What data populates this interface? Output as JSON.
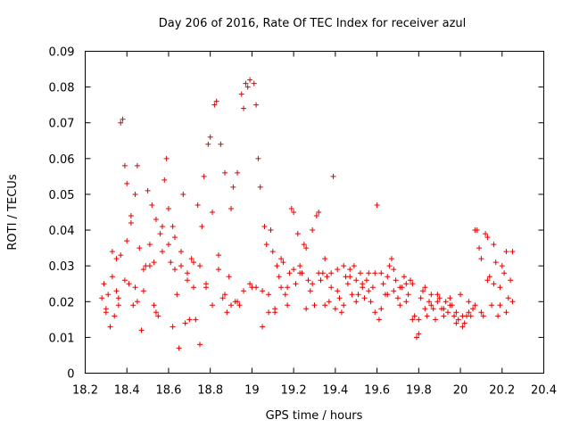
{
  "chart_data": {
    "type": "scatter",
    "title": "Day 206 of 2016, Rate Of TEC Index for receiver azul",
    "xlabel": "GPS time / hours",
    "ylabel": "ROTI / TECUs",
    "xlim": [
      18.2,
      20.4
    ],
    "ylim": [
      0,
      0.09
    ],
    "xticks": [
      18.2,
      18.4,
      18.6,
      18.8,
      19,
      19.2,
      19.4,
      19.6,
      19.8,
      20,
      20.2,
      20.4
    ],
    "xtick_labels": [
      "18.2",
      "18.4",
      "18.6",
      "18.8",
      "19",
      "19.2",
      "19.4",
      "19.6",
      "19.8",
      "20",
      "20.2",
      "20.4"
    ],
    "yticks": [
      0,
      0.01,
      0.02,
      0.03,
      0.04,
      0.05,
      0.06,
      0.07,
      0.08,
      0.09
    ],
    "ytick_labels": [
      "0",
      "0.01",
      "0.02",
      "0.03",
      "0.04",
      "0.05",
      "0.06",
      "0.07",
      "0.08",
      "0.09"
    ],
    "marker": "+",
    "color": "#e00000",
    "grid": false,
    "series": [
      {
        "name": "ROTI",
        "points": [
          [
            18.28,
            0.021
          ],
          [
            18.29,
            0.025
          ],
          [
            18.3,
            0.018
          ],
          [
            18.31,
            0.022
          ],
          [
            18.32,
            0.013
          ],
          [
            18.33,
            0.034
          ],
          [
            18.34,
            0.016
          ],
          [
            18.35,
            0.032
          ],
          [
            18.36,
            0.021
          ],
          [
            18.37,
            0.033
          ],
          [
            18.37,
            0.07
          ],
          [
            18.38,
            0.071
          ],
          [
            18.39,
            0.058
          ],
          [
            18.4,
            0.053
          ],
          [
            18.4,
            0.037
          ],
          [
            18.41,
            0.025
          ],
          [
            18.42,
            0.044
          ],
          [
            18.43,
            0.019
          ],
          [
            18.44,
            0.05
          ],
          [
            18.45,
            0.058
          ],
          [
            18.46,
            0.035
          ],
          [
            18.47,
            0.012
          ],
          [
            18.48,
            0.023
          ],
          [
            18.49,
            0.03
          ],
          [
            18.5,
            0.051
          ],
          [
            18.51,
            0.036
          ],
          [
            18.52,
            0.047
          ],
          [
            18.53,
            0.019
          ],
          [
            18.54,
            0.043
          ],
          [
            18.55,
            0.016
          ],
          [
            18.56,
            0.039
          ],
          [
            18.57,
            0.041
          ],
          [
            18.58,
            0.054
          ],
          [
            18.59,
            0.06
          ],
          [
            18.6,
            0.046
          ],
          [
            18.61,
            0.031
          ],
          [
            18.62,
            0.013
          ],
          [
            18.63,
            0.038
          ],
          [
            18.64,
            0.022
          ],
          [
            18.65,
            0.007
          ],
          [
            18.66,
            0.034
          ],
          [
            18.67,
            0.05
          ],
          [
            18.68,
            0.014
          ],
          [
            18.69,
            0.028
          ],
          [
            18.7,
            0.015
          ],
          [
            18.71,
            0.032
          ],
          [
            18.72,
            0.024
          ],
          [
            18.73,
            0.015
          ],
          [
            18.74,
            0.047
          ],
          [
            18.75,
            0.008
          ],
          [
            18.76,
            0.041
          ],
          [
            18.77,
            0.055
          ],
          [
            18.78,
            0.024
          ],
          [
            18.79,
            0.064
          ],
          [
            18.8,
            0.066
          ],
          [
            18.81,
            0.019
          ],
          [
            18.82,
            0.075
          ],
          [
            18.83,
            0.076
          ],
          [
            18.84,
            0.029
          ],
          [
            18.85,
            0.064
          ],
          [
            18.86,
            0.021
          ],
          [
            18.87,
            0.056
          ],
          [
            18.88,
            0.017
          ],
          [
            18.89,
            0.027
          ],
          [
            18.9,
            0.046
          ],
          [
            18.91,
            0.052
          ],
          [
            18.92,
            0.02
          ],
          [
            18.93,
            0.056
          ],
          [
            18.94,
            0.019
          ],
          [
            18.95,
            0.078
          ],
          [
            18.96,
            0.074
          ],
          [
            18.97,
            0.081
          ],
          [
            18.98,
            0.08
          ],
          [
            18.99,
            0.082
          ],
          [
            19.0,
            0.024
          ],
          [
            19.01,
            0.081
          ],
          [
            19.02,
            0.075
          ],
          [
            19.03,
            0.06
          ],
          [
            19.04,
            0.052
          ],
          [
            19.05,
            0.013
          ],
          [
            19.06,
            0.041
          ],
          [
            19.07,
            0.036
          ],
          [
            19.08,
            0.022
          ],
          [
            19.09,
            0.04
          ],
          [
            19.1,
            0.034
          ],
          [
            19.11,
            0.018
          ],
          [
            19.12,
            0.03
          ],
          [
            19.13,
            0.027
          ],
          [
            19.14,
            0.024
          ],
          [
            19.15,
            0.031
          ],
          [
            19.16,
            0.022
          ],
          [
            19.17,
            0.019
          ],
          [
            19.18,
            0.028
          ],
          [
            19.19,
            0.046
          ],
          [
            19.2,
            0.045
          ],
          [
            19.21,
            0.025
          ],
          [
            19.22,
            0.039
          ],
          [
            19.23,
            0.03
          ],
          [
            19.24,
            0.028
          ],
          [
            19.25,
            0.036
          ],
          [
            19.26,
            0.035
          ],
          [
            19.27,
            0.026
          ],
          [
            19.28,
            0.023
          ],
          [
            19.29,
            0.04
          ],
          [
            19.3,
            0.019
          ],
          [
            19.31,
            0.044
          ],
          [
            19.32,
            0.045
          ],
          [
            19.33,
            0.026
          ],
          [
            19.34,
            0.028
          ],
          [
            19.35,
            0.032
          ],
          [
            19.36,
            0.027
          ],
          [
            19.37,
            0.02
          ],
          [
            19.38,
            0.024
          ],
          [
            19.39,
            0.055
          ],
          [
            19.4,
            0.018
          ],
          [
            19.41,
            0.029
          ],
          [
            19.42,
            0.021
          ],
          [
            19.43,
            0.017
          ],
          [
            19.44,
            0.03
          ],
          [
            19.45,
            0.027
          ],
          [
            19.46,
            0.025
          ],
          [
            19.47,
            0.029
          ],
          [
            19.48,
            0.022
          ],
          [
            19.49,
            0.03
          ],
          [
            19.5,
            0.026
          ],
          [
            19.51,
            0.022
          ],
          [
            19.52,
            0.028
          ],
          [
            19.53,
            0.024
          ],
          [
            19.54,
            0.021
          ],
          [
            19.55,
            0.026
          ],
          [
            19.56,
            0.028
          ],
          [
            19.57,
            0.02
          ],
          [
            19.58,
            0.024
          ],
          [
            19.59,
            0.017
          ],
          [
            19.6,
            0.047
          ],
          [
            19.61,
            0.015
          ],
          [
            19.62,
            0.028
          ],
          [
            19.63,
            0.025
          ],
          [
            19.64,
            0.022
          ],
          [
            19.65,
            0.027
          ],
          [
            19.66,
            0.03
          ],
          [
            19.67,
            0.032
          ],
          [
            19.68,
            0.023
          ],
          [
            19.69,
            0.026
          ],
          [
            19.7,
            0.021
          ],
          [
            19.71,
            0.019
          ],
          [
            19.72,
            0.024
          ],
          [
            19.73,
            0.027
          ],
          [
            19.74,
            0.025
          ],
          [
            19.75,
            0.022
          ],
          [
            19.76,
            0.026
          ],
          [
            19.77,
            0.015
          ],
          [
            19.78,
            0.016
          ],
          [
            19.79,
            0.01
          ],
          [
            19.8,
            0.011
          ],
          [
            19.81,
            0.021
          ],
          [
            19.82,
            0.023
          ],
          [
            19.83,
            0.018
          ],
          [
            19.84,
            0.016
          ],
          [
            19.85,
            0.02
          ],
          [
            19.86,
            0.022
          ],
          [
            19.87,
            0.018
          ],
          [
            19.88,
            0.015
          ],
          [
            19.89,
            0.02
          ],
          [
            19.9,
            0.021
          ],
          [
            19.91,
            0.018
          ],
          [
            19.92,
            0.016
          ],
          [
            19.93,
            0.02
          ],
          [
            19.94,
            0.017
          ],
          [
            19.95,
            0.021
          ],
          [
            19.96,
            0.019
          ],
          [
            19.97,
            0.016
          ],
          [
            19.98,
            0.014
          ],
          [
            19.99,
            0.015
          ],
          [
            20.0,
            0.022
          ],
          [
            20.01,
            0.013
          ],
          [
            20.02,
            0.014
          ],
          [
            20.03,
            0.016
          ],
          [
            20.04,
            0.017
          ],
          [
            20.05,
            0.016
          ],
          [
            20.06,
            0.018
          ],
          [
            20.07,
            0.04
          ],
          [
            20.08,
            0.04
          ],
          [
            20.09,
            0.035
          ],
          [
            20.1,
            0.032
          ],
          [
            20.11,
            0.016
          ],
          [
            20.12,
            0.039
          ],
          [
            20.13,
            0.038
          ],
          [
            20.14,
            0.027
          ],
          [
            20.15,
            0.019
          ],
          [
            20.16,
            0.036
          ],
          [
            20.17,
            0.031
          ],
          [
            20.18,
            0.016
          ],
          [
            20.19,
            0.024
          ],
          [
            20.2,
            0.03
          ],
          [
            20.21,
            0.028
          ],
          [
            20.22,
            0.034
          ],
          [
            20.23,
            0.021
          ],
          [
            20.24,
            0.026
          ],
          [
            20.25,
            0.034
          ],
          [
            18.3,
            0.017
          ],
          [
            18.33,
            0.027
          ],
          [
            18.36,
            0.019
          ],
          [
            18.39,
            0.026
          ],
          [
            18.42,
            0.042
          ],
          [
            18.45,
            0.02
          ],
          [
            18.48,
            0.029
          ],
          [
            18.51,
            0.03
          ],
          [
            18.54,
            0.017
          ],
          [
            18.57,
            0.034
          ],
          [
            18.6,
            0.036
          ],
          [
            18.63,
            0.029
          ],
          [
            18.66,
            0.03
          ],
          [
            18.69,
            0.026
          ],
          [
            18.72,
            0.031
          ],
          [
            18.75,
            0.03
          ],
          [
            18.78,
            0.025
          ],
          [
            18.81,
            0.045
          ],
          [
            18.84,
            0.033
          ],
          [
            18.87,
            0.022
          ],
          [
            18.9,
            0.019
          ],
          [
            18.93,
            0.02
          ],
          [
            18.96,
            0.023
          ],
          [
            18.99,
            0.025
          ],
          [
            19.02,
            0.024
          ],
          [
            19.05,
            0.023
          ],
          [
            19.08,
            0.017
          ],
          [
            19.11,
            0.017
          ],
          [
            19.14,
            0.032
          ],
          [
            19.17,
            0.024
          ],
          [
            19.2,
            0.029
          ],
          [
            19.23,
            0.028
          ],
          [
            19.26,
            0.018
          ],
          [
            19.29,
            0.025
          ],
          [
            19.32,
            0.028
          ],
          [
            19.35,
            0.019
          ],
          [
            19.38,
            0.028
          ],
          [
            19.41,
            0.023
          ],
          [
            19.44,
            0.019
          ],
          [
            19.47,
            0.027
          ],
          [
            19.5,
            0.02
          ],
          [
            19.53,
            0.025
          ],
          [
            19.56,
            0.023
          ],
          [
            19.59,
            0.028
          ],
          [
            19.62,
            0.018
          ],
          [
            19.65,
            0.022
          ],
          [
            19.68,
            0.029
          ],
          [
            19.71,
            0.024
          ],
          [
            19.74,
            0.02
          ],
          [
            19.77,
            0.025
          ],
          [
            19.8,
            0.015
          ],
          [
            19.83,
            0.024
          ],
          [
            19.86,
            0.019
          ],
          [
            19.89,
            0.022
          ],
          [
            19.92,
            0.018
          ],
          [
            19.95,
            0.019
          ],
          [
            19.98,
            0.017
          ],
          [
            20.01,
            0.016
          ],
          [
            20.04,
            0.02
          ],
          [
            20.07,
            0.019
          ],
          [
            20.1,
            0.017
          ],
          [
            20.13,
            0.026
          ],
          [
            20.16,
            0.025
          ],
          [
            20.19,
            0.019
          ],
          [
            20.22,
            0.017
          ],
          [
            20.25,
            0.02
          ],
          [
            18.35,
            0.023
          ],
          [
            18.44,
            0.024
          ],
          [
            18.53,
            0.031
          ],
          [
            18.62,
            0.041
          ]
        ]
      }
    ]
  }
}
